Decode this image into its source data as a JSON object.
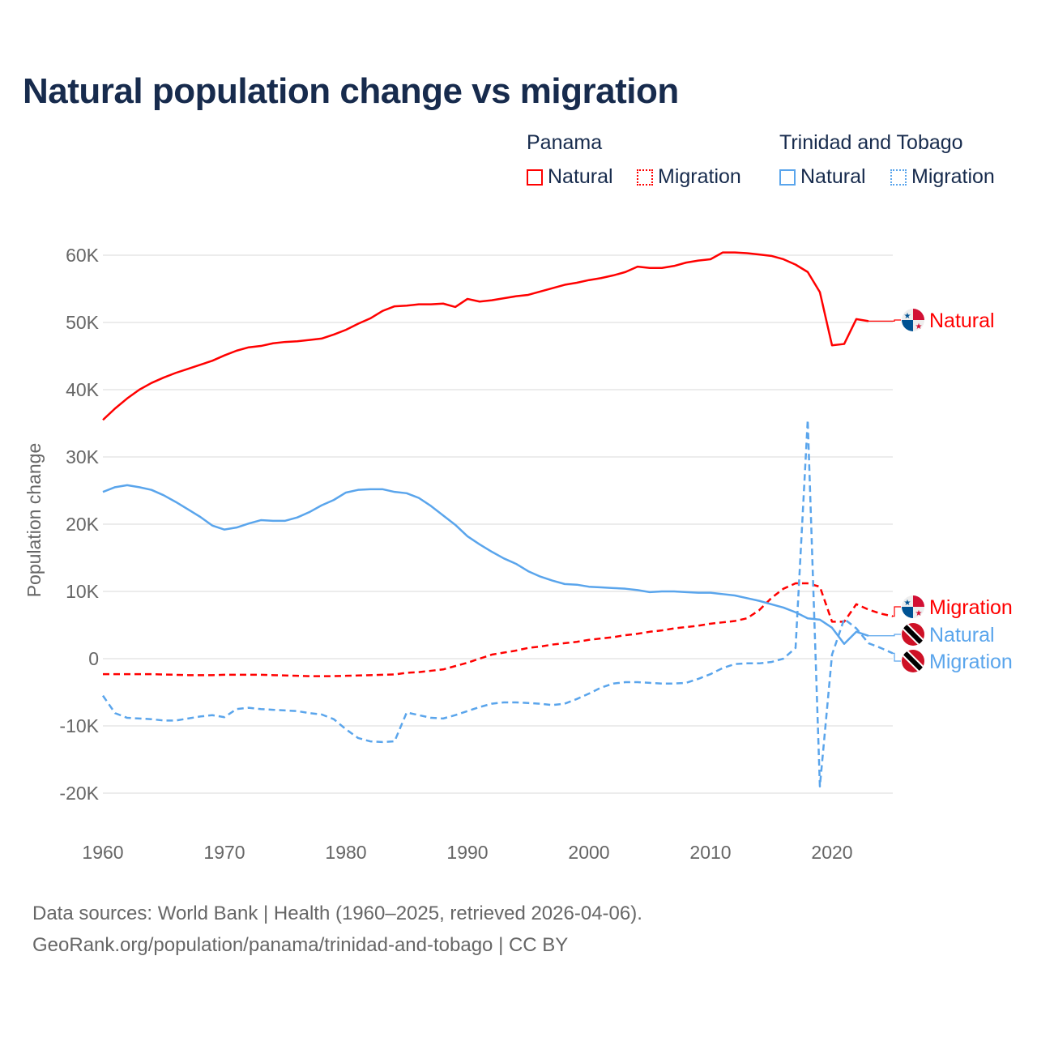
{
  "title": "Natural population change vs migration",
  "legend": {
    "groups": [
      {
        "name": "Panama",
        "items": [
          "Natural",
          "Migration"
        ],
        "color": "#ff0000"
      },
      {
        "name": "Trinidad and Tobago",
        "items": [
          "Natural",
          "Migration"
        ],
        "color": "#5aa5ec"
      }
    ]
  },
  "footer": {
    "line1": "Data sources: World Bank | Health (1960–2025, retrieved 2026-04-06).",
    "line2": "GeoRank.org/population/panama/trinidad-and-tobago | CC BY"
  },
  "chart_data": {
    "type": "line",
    "title": "Natural population change vs migration",
    "xlabel": "",
    "ylabel": "Population change",
    "xlim": [
      1960,
      2025
    ],
    "ylim": [
      -25000,
      65000
    ],
    "x_ticks": [
      1960,
      1970,
      1980,
      1990,
      2000,
      2010,
      2020
    ],
    "y_ticks": [
      {
        "v": 60000,
        "label": "60K"
      },
      {
        "v": 50000,
        "label": "50K"
      },
      {
        "v": 40000,
        "label": "40K"
      },
      {
        "v": 30000,
        "label": "30K"
      },
      {
        "v": 20000,
        "label": "20K"
      },
      {
        "v": 10000,
        "label": "10K"
      },
      {
        "v": 0,
        "label": "0"
      },
      {
        "v": -10000,
        "label": "-10K"
      },
      {
        "v": -20000,
        "label": "-20K"
      }
    ],
    "grid": true,
    "series": [
      {
        "name": "Panama Natural",
        "label": "Natural",
        "country": "Panama",
        "color": "#ff0000",
        "dashed": false,
        "start": 1960,
        "values": [
          35500,
          37200,
          38700,
          40000,
          41000,
          41800,
          42500,
          43100,
          43700,
          44300,
          45100,
          45800,
          46300,
          46500,
          46900,
          47100,
          47200,
          47400,
          47600,
          48200,
          48900,
          49800,
          50600,
          51700,
          52400,
          52500,
          52700,
          52700,
          52800,
          52300,
          53500,
          53100,
          53300,
          53600,
          53900,
          54100,
          54600,
          55100,
          55600,
          55900,
          56300,
          56600,
          57000,
          57500,
          58300,
          58100,
          58100,
          58400,
          58900,
          59200,
          59400,
          60400,
          60400,
          60300,
          60100,
          59900,
          59400,
          58600,
          57500,
          54500,
          46600,
          46800,
          50500,
          50200
        ]
      },
      {
        "name": "Panama Migration",
        "label": "Migration",
        "country": "Panama",
        "color": "#ff0000",
        "dashed": true,
        "start": 1960,
        "values": [
          -2300,
          -2300,
          -2300,
          -2300,
          -2300,
          -2350,
          -2400,
          -2450,
          -2450,
          -2450,
          -2400,
          -2400,
          -2400,
          -2400,
          -2450,
          -2500,
          -2550,
          -2600,
          -2600,
          -2600,
          -2550,
          -2500,
          -2450,
          -2400,
          -2350,
          -2100,
          -2000,
          -1800,
          -1600,
          -1100,
          -600,
          0,
          600,
          900,
          1200,
          1600,
          1800,
          2100,
          2300,
          2500,
          2800,
          3000,
          3200,
          3500,
          3700,
          4000,
          4200,
          4500,
          4700,
          4900,
          5200,
          5400,
          5600,
          6000,
          7200,
          9000,
          10400,
          11200,
          11200,
          10700,
          5500,
          5500,
          8100,
          7300,
          6700,
          6300
        ]
      },
      {
        "name": "Trinidad and Tobago Natural",
        "label": "Natural",
        "country": "Trinidad and Tobago",
        "color": "#5aa5ec",
        "dashed": false,
        "start": 1960,
        "values": [
          24800,
          25500,
          25800,
          25500,
          25100,
          24300,
          23300,
          22200,
          21100,
          19800,
          19200,
          19500,
          20100,
          20600,
          20500,
          20500,
          21000,
          21800,
          22800,
          23600,
          24700,
          25100,
          25200,
          25200,
          24800,
          24600,
          23900,
          22700,
          21300,
          19900,
          18200,
          17000,
          15900,
          14900,
          14100,
          13000,
          12200,
          11600,
          11100,
          11000,
          10700,
          10600,
          10500,
          10400,
          10200,
          9900,
          10000,
          10000,
          9900,
          9800,
          9800,
          9600,
          9400,
          9000,
          8600,
          8100,
          7600,
          6900,
          6000,
          5800,
          4600,
          2200,
          4000,
          3400
        ]
      },
      {
        "name": "Trinidad and Tobago Migration",
        "label": "Migration",
        "country": "Trinidad and Tobago",
        "color": "#5aa5ec",
        "dashed": true,
        "start": 1960,
        "values": [
          -5500,
          -8100,
          -8800,
          -8900,
          -9000,
          -9200,
          -9200,
          -8900,
          -8600,
          -8400,
          -8700,
          -7500,
          -7300,
          -7500,
          -7600,
          -7700,
          -7800,
          -8100,
          -8300,
          -9000,
          -10500,
          -11800,
          -12300,
          -12400,
          -12300,
          -8000,
          -8400,
          -8800,
          -8900,
          -8400,
          -7800,
          -7200,
          -6700,
          -6500,
          -6500,
          -6600,
          -6700,
          -6900,
          -6700,
          -6000,
          -5200,
          -4300,
          -3700,
          -3500,
          -3500,
          -3600,
          -3700,
          -3700,
          -3600,
          -3000,
          -2300,
          -1400,
          -800,
          -700,
          -700,
          -500,
          0,
          1600,
          35500,
          -19000,
          600,
          5900,
          4500,
          2300,
          1600,
          800
        ]
      }
    ]
  }
}
